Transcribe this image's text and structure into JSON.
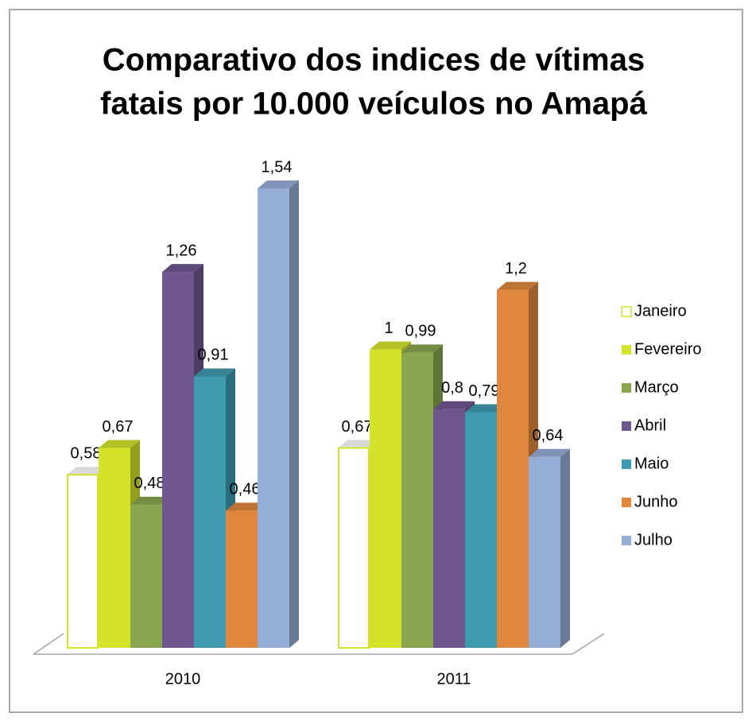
{
  "chart_data": {
    "type": "bar3d",
    "title": [
      "Comparativo dos indices de vítimas",
      "fatais por 10.000 veículos no Amapá"
    ],
    "categories": [
      "2010",
      "2011"
    ],
    "series": [
      {
        "name": "Janeiro",
        "color": "#ffffff",
        "edgecolor": "#d4e32a",
        "values": [
          0.58,
          0.67
        ],
        "value_labels": [
          "0,58",
          "0,67"
        ]
      },
      {
        "name": "Fevereiro",
        "color": "#d4e32a",
        "values": [
          0.67,
          1
        ],
        "value_labels": [
          "0,67",
          "1"
        ]
      },
      {
        "name": "Março",
        "color": "#8aa64e",
        "values": [
          0.48,
          0.99
        ],
        "value_labels": [
          "0,48",
          "0,99"
        ]
      },
      {
        "name": "Abril",
        "color": "#70568f",
        "values": [
          1.26,
          0.8
        ],
        "value_labels": [
          "1,26",
          "0,8"
        ]
      },
      {
        "name": "Maio",
        "color": "#3f9bb0",
        "values": [
          0.91,
          0.79
        ],
        "value_labels": [
          "0,91",
          "0,79"
        ]
      },
      {
        "name": "Junho",
        "color": "#e0873f",
        "values": [
          0.46,
          1.2
        ],
        "value_labels": [
          "0,46",
          "1,2"
        ]
      },
      {
        "name": "Julho",
        "color": "#95aed6",
        "values": [
          1.54,
          0.64
        ],
        "value_labels": [
          "1,54",
          "0,64"
        ]
      }
    ],
    "legend": "right"
  }
}
